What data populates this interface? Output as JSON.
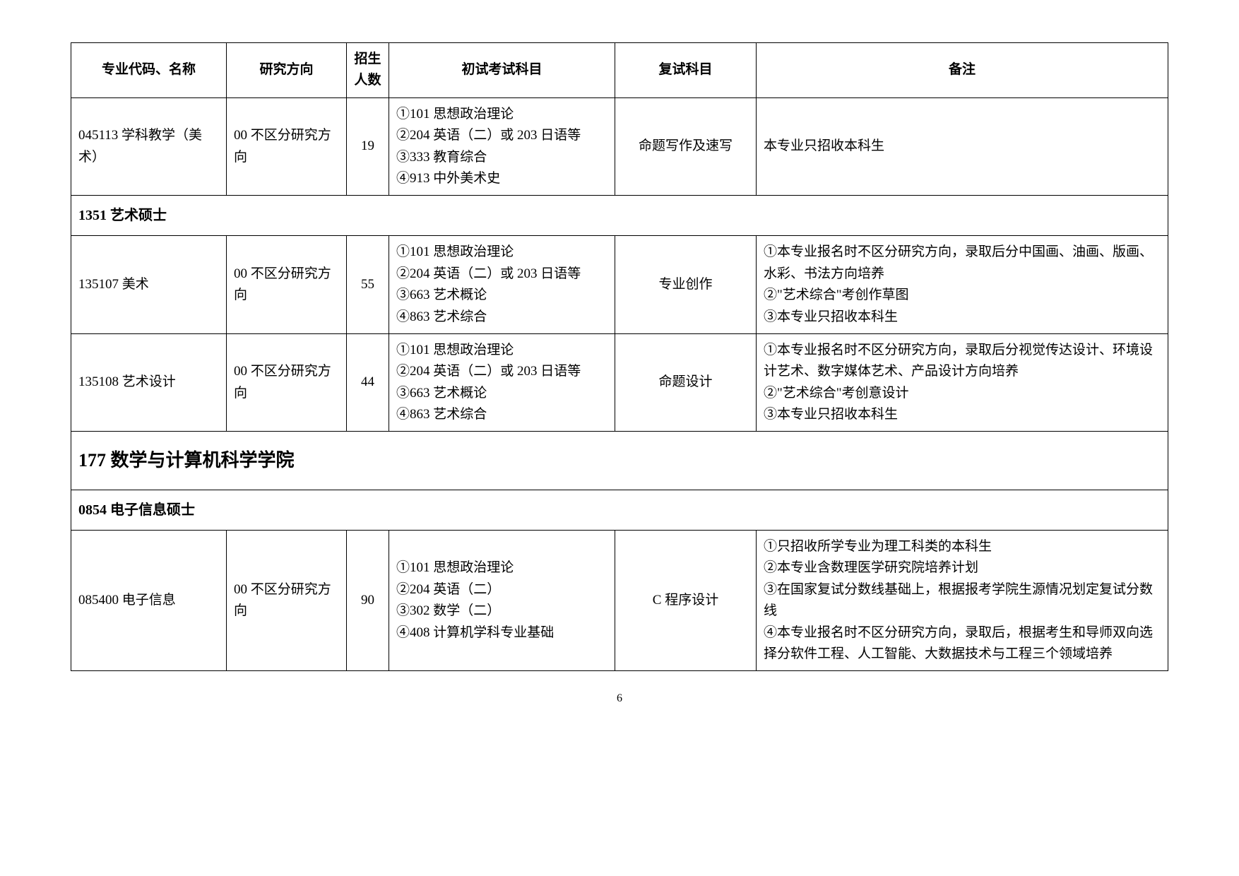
{
  "headers": {
    "code": "专业代码、名称",
    "direction": "研究方向",
    "number": "招生人数",
    "exam": "初试考试科目",
    "retest": "复试科目",
    "note": "备注"
  },
  "rows": [
    {
      "code": "045113 学科教学（美术）",
      "direction": "00 不区分研究方向",
      "number": "19",
      "exam": "①101 思想政治理论\n②204 英语（二）或 203 日语等\n③333 教育综合\n④913 中外美术史",
      "retest": "命题写作及速写",
      "note": "本专业只招收本科生"
    }
  ],
  "section1": "1351 艺术硕士",
  "rows2": [
    {
      "code": "135107 美术",
      "direction": "00 不区分研究方向",
      "number": "55",
      "exam": "①101 思想政治理论\n②204 英语（二）或 203 日语等\n③663 艺术概论\n④863 艺术综合",
      "retest": "专业创作",
      "note": "①本专业报名时不区分研究方向，录取后分中国画、油画、版画、水彩、书法方向培养\n②\"艺术综合\"考创作草图\n③本专业只招收本科生"
    },
    {
      "code": "135108 艺术设计",
      "direction": "00 不区分研究方向",
      "number": "44",
      "exam": "①101 思想政治理论\n②204 英语（二）或 203 日语等\n③663 艺术概论\n④863 艺术综合",
      "retest": "命题设计",
      "note": "①本专业报名时不区分研究方向，录取后分视觉传达设计、环境设计艺术、数字媒体艺术、产品设计方向培养\n②\"艺术综合\"考创意设计\n③本专业只招收本科生"
    }
  ],
  "section2": "177 数学与计算机科学学院",
  "section3": "0854 电子信息硕士",
  "rows3": [
    {
      "code": "085400 电子信息",
      "direction": "00 不区分研究方向",
      "number": "90",
      "exam": "①101 思想政治理论\n②204 英语（二）\n③302 数学（二）\n④408 计算机学科专业基础",
      "retest": "C 程序设计",
      "note": "①只招收所学专业为理工科类的本科生\n②本专业含数理医学研究院培养计划\n③在国家复试分数线基础上，根据报考学院生源情况划定复试分数线\n④本专业报名时不区分研究方向，录取后，根据考生和导师双向选择分软件工程、人工智能、大数据技术与工程三个领域培养"
    }
  ],
  "pageNum": "6"
}
